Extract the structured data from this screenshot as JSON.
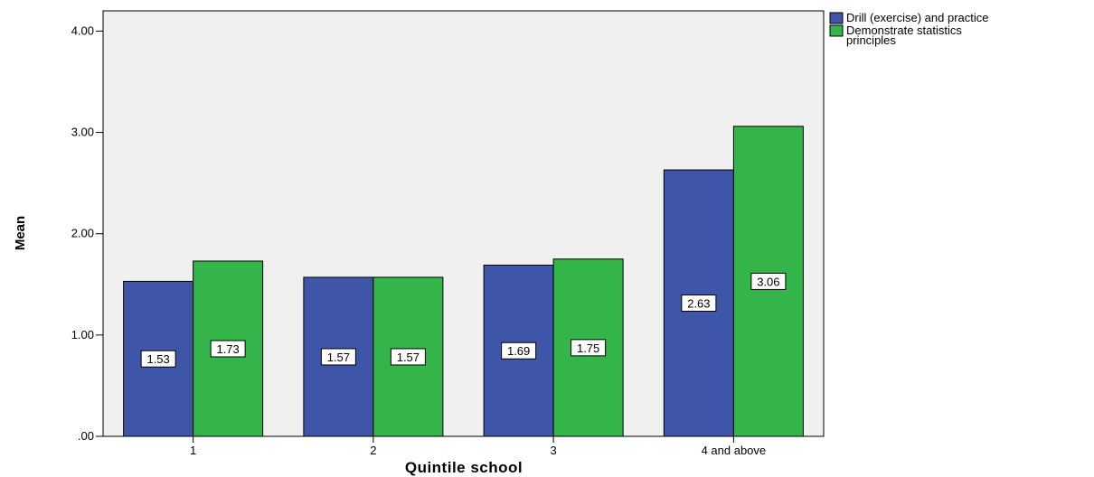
{
  "chart_data": {
    "type": "bar",
    "categories": [
      "1",
      "2",
      "3",
      "4 and above"
    ],
    "series": [
      {
        "name": "Drill (exercise) and practice",
        "values": [
          1.53,
          1.57,
          1.69,
          2.63
        ],
        "color": "#3f56a8"
      },
      {
        "name": "Demonstrate statistics principles",
        "values": [
          1.73,
          1.57,
          1.75,
          3.06
        ],
        "color": "#33b54a"
      }
    ],
    "data_labels": [
      [
        "1.53",
        "1.57",
        "1.69",
        "2.63"
      ],
      [
        "1.73",
        "1.57",
        "1.75",
        "3.06"
      ]
    ],
    "xlabel": "Quintile school",
    "ylabel": "Mean",
    "ylim": [
      0,
      4.2
    ],
    "yticks": [
      0,
      1,
      2,
      3,
      4
    ],
    "ytick_labels": [
      ".00",
      "1.00",
      "2.00",
      "3.00",
      "4.00"
    ],
    "grid": false,
    "plot_background": "#f0f0f0",
    "legend_position": "top-right",
    "legend_lines": [
      [
        "Drill (exercise) and practice"
      ],
      [
        "Demonstrate statistics",
        "principles"
      ]
    ]
  }
}
